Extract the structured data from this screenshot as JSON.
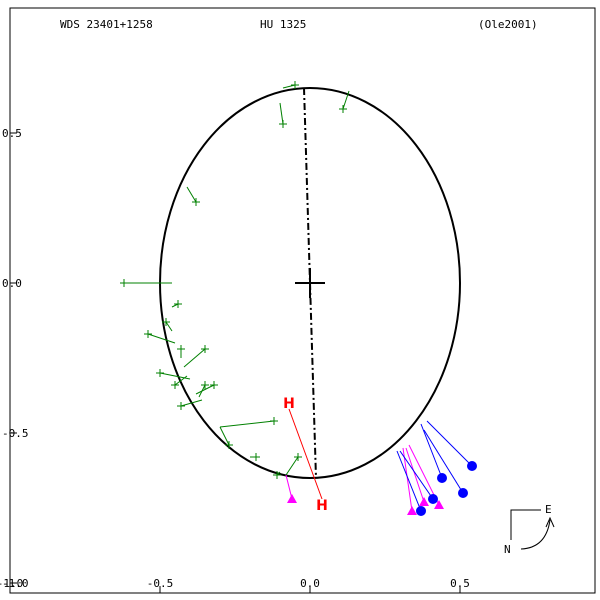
{
  "header": {
    "wds_id": "WDS 23401+1258",
    "discoverer": "HU 1325",
    "reference": "(Ole2001)"
  },
  "compass": {
    "east": "E",
    "north": "N"
  },
  "periastron_mark": "H",
  "chart_data": {
    "type": "scatter",
    "title": "",
    "xlabel": "",
    "ylabel": "",
    "xlim": [
      -1.0,
      0.95
    ],
    "ylim": [
      -1.0,
      0.95
    ],
    "x_ticks": [
      {
        "value": -1.0,
        "label": "-1.0"
      },
      {
        "value": -0.5,
        "label": "-0.5"
      },
      {
        "value": 0.0,
        "label": "0.0"
      },
      {
        "value": 0.5,
        "label": "0.5"
      }
    ],
    "y_ticks": [
      {
        "value": 0.5,
        "label": "0.5"
      },
      {
        "value": 0.0,
        "label": "0.0"
      },
      {
        "value": -0.5,
        "label": "-0.5"
      },
      {
        "value": -1.0,
        "label": "-1.0"
      }
    ],
    "primary": [
      0.0,
      0.0
    ],
    "orbit_ellipse": {
      "cx": 0.0,
      "cy": 0.0,
      "rx": 0.5,
      "ry": 0.65
    },
    "line_of_apsides": [
      [
        -0.02,
        0.65
      ],
      [
        0.02,
        -0.65
      ]
    ],
    "periastron_marks": [
      [
        -0.07,
        -0.4
      ],
      [
        0.04,
        -0.74
      ]
    ],
    "series": [
      {
        "name": "",
        "marker": "plus",
        "color": "#008000",
        "points": [
          [
            -0.05,
            0.66
          ],
          [
            -0.09,
            0.53
          ],
          [
            0.11,
            0.58
          ],
          [
            -0.38,
            0.27
          ],
          [
            -0.62,
            0.0
          ],
          [
            -0.44,
            -0.07
          ],
          [
            -0.48,
            -0.13
          ],
          [
            -0.54,
            -0.17
          ],
          [
            -0.43,
            -0.22
          ],
          [
            -0.35,
            -0.22
          ],
          [
            -0.45,
            -0.34
          ],
          [
            -0.5,
            -0.3
          ],
          [
            -0.32,
            -0.34
          ],
          [
            -0.35,
            -0.34
          ],
          [
            -0.43,
            -0.41
          ],
          [
            -0.27,
            -0.54
          ],
          [
            -0.18,
            -0.58
          ],
          [
            -0.11,
            -0.64
          ],
          [
            -0.04,
            -0.58
          ],
          [
            -0.12,
            -0.46
          ]
        ],
        "tie_to_orbit": [
          [
            -0.09,
            0.65
          ],
          [
            -0.1,
            0.6
          ],
          [
            0.13,
            0.64
          ],
          [
            -0.41,
            0.32
          ],
          [
            -0.46,
            0.0
          ],
          [
            -0.46,
            -0.08
          ],
          [
            -0.46,
            -0.16
          ],
          [
            -0.45,
            -0.2
          ],
          [
            -0.43,
            -0.25
          ],
          [
            -0.42,
            -0.28
          ],
          [
            -0.41,
            -0.31
          ],
          [
            -0.4,
            -0.32
          ],
          [
            -0.38,
            -0.37
          ],
          [
            -0.37,
            -0.38
          ],
          [
            -0.36,
            -0.39
          ],
          [
            -0.3,
            -0.48
          ],
          [
            -0.2,
            -0.58
          ],
          [
            -0.1,
            -0.63
          ],
          [
            -0.08,
            -0.64
          ],
          [
            -0.3,
            -0.48
          ]
        ]
      },
      {
        "name": "",
        "marker": "triangle",
        "color": "#ff00ff",
        "points": [
          [
            -0.06,
            -0.72
          ],
          [
            0.34,
            -0.76
          ],
          [
            0.38,
            -0.73
          ],
          [
            0.43,
            -0.74
          ]
        ],
        "tie_to_orbit": [
          [
            -0.08,
            -0.64
          ],
          [
            0.31,
            -0.55
          ],
          [
            0.32,
            -0.55
          ],
          [
            0.33,
            -0.54
          ]
        ]
      },
      {
        "name": "",
        "marker": "dot",
        "color": "#0000ff",
        "points": [
          [
            0.37,
            -0.76
          ],
          [
            0.41,
            -0.72
          ],
          [
            0.44,
            -0.65
          ],
          [
            0.51,
            -0.7
          ],
          [
            0.54,
            -0.61
          ]
        ],
        "tie_to_orbit": [
          [
            0.29,
            -0.56
          ],
          [
            0.3,
            -0.56
          ],
          [
            0.37,
            -0.47
          ],
          [
            0.38,
            -0.49
          ],
          [
            0.39,
            -0.46
          ]
        ]
      }
    ],
    "grid": false,
    "legend": "none"
  }
}
